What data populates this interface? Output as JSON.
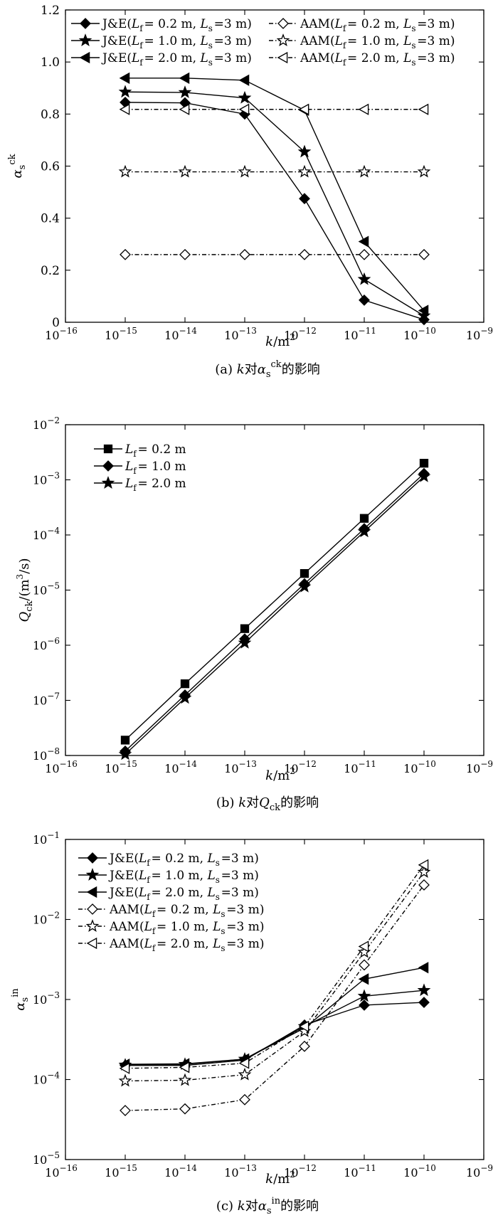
{
  "chart_data": [
    {
      "type": "line",
      "id": "a",
      "x_scale": "log",
      "y_scale": "linear",
      "xlim": [
        1e-16,
        1e-09
      ],
      "ylim": [
        0,
        1.2
      ],
      "x": [
        1e-15,
        1e-14,
        1e-13,
        1e-12,
        1e-11,
        1e-10
      ],
      "x_ticks": [
        -16,
        -15,
        -14,
        -13,
        -12,
        -11,
        -10,
        -9
      ],
      "y_ticks": [
        "0",
        "0.2",
        "0.4",
        "0.6",
        "0.8",
        "1.0",
        "1.2"
      ],
      "xlabel": "k/m²",
      "ylabel": "αsck",
      "caption": "(a)  k对αsck的影响",
      "legend_position": "top",
      "series": [
        {
          "legend_parts": [
            "J&E(",
            "Lf",
            "= 0.2 m, ",
            "Ls",
            "=3 m)"
          ],
          "marker": "diamond-filled",
          "line": "solid",
          "values": [
            0.845,
            0.843,
            0.8,
            0.475,
            0.085,
            0.01
          ]
        },
        {
          "legend_parts": [
            "J&E(",
            "Lf",
            "= 1.0 m, ",
            "Ls",
            "=3 m)"
          ],
          "marker": "star-filled",
          "line": "solid",
          "values": [
            0.885,
            0.883,
            0.862,
            0.655,
            0.165,
            0.025
          ]
        },
        {
          "legend_parts": [
            "J&E(",
            "Lf",
            "= 2.0 m, ",
            "Ls",
            "=3 m)"
          ],
          "marker": "triangle-left-filled",
          "line": "solid",
          "values": [
            0.938,
            0.938,
            0.93,
            0.815,
            0.31,
            0.045
          ]
        },
        {
          "legend_parts": [
            "AAM(",
            "Lf",
            "= 0.2 m, ",
            "Ls",
            "=3 m)"
          ],
          "marker": "diamond-open",
          "line": "dashdot",
          "values": [
            0.26,
            0.26,
            0.26,
            0.26,
            0.26,
            0.26
          ]
        },
        {
          "legend_parts": [
            "AAM(",
            "Lf",
            "= 1.0 m, ",
            "Ls",
            "=3 m)"
          ],
          "marker": "star-open",
          "line": "dashdot",
          "values": [
            0.578,
            0.578,
            0.578,
            0.578,
            0.578,
            0.578
          ]
        },
        {
          "legend_parts": [
            "AAM(",
            "Lf",
            "= 2.0 m, ",
            "Ls",
            "=3 m)"
          ],
          "marker": "triangle-left-open",
          "line": "dashdot",
          "values": [
            0.818,
            0.818,
            0.818,
            0.818,
            0.818,
            0.818
          ]
        }
      ]
    },
    {
      "type": "line",
      "id": "b",
      "x_scale": "log",
      "y_scale": "log",
      "xlim": [
        1e-16,
        1e-09
      ],
      "ylim": [
        1e-08,
        0.01
      ],
      "x": [
        1e-15,
        1e-14,
        1e-13,
        1e-12,
        1e-11,
        1e-10
      ],
      "x_ticks": [
        -16,
        -15,
        -14,
        -13,
        -12,
        -11,
        -10,
        -9
      ],
      "y_ticks": [
        -8,
        -7,
        -6,
        -5,
        -4,
        -3,
        -2
      ],
      "xlabel": "k/m²",
      "ylabel": "Qck/(m³/s)",
      "caption": "(b)  k对Qck的影响",
      "legend_position": "top-left",
      "series": [
        {
          "legend_parts": [
            "",
            "Lf",
            "= 0.2 m"
          ],
          "marker": "square-filled",
          "line": "solid",
          "values": [
            1.9e-08,
            2e-07,
            2e-06,
            2e-05,
            0.0002,
            0.002
          ]
        },
        {
          "legend_parts": [
            "",
            "Lf",
            "= 1.0 m"
          ],
          "marker": "diamond-filled",
          "line": "solid",
          "values": [
            1.2e-08,
            1.25e-07,
            1.3e-06,
            1.3e-05,
            0.00013,
            0.0013
          ]
        },
        {
          "legend_parts": [
            "",
            "Lf",
            "= 2.0 m"
          ],
          "marker": "star-filled",
          "line": "solid",
          "values": [
            1.05e-08,
            1.1e-07,
            1.1e-06,
            1.15e-05,
            0.000115,
            0.00115
          ]
        }
      ]
    },
    {
      "type": "line",
      "id": "c",
      "x_scale": "log",
      "y_scale": "log",
      "xlim": [
        1e-16,
        1e-09
      ],
      "ylim": [
        1e-05,
        0.1
      ],
      "x": [
        1e-15,
        1e-14,
        1e-13,
        1e-12,
        1e-11,
        1e-10
      ],
      "x_ticks": [
        -16,
        -15,
        -14,
        -13,
        -12,
        -11,
        -10,
        -9
      ],
      "y_ticks": [
        -5,
        -4,
        -3,
        -2,
        -1
      ],
      "xlabel": "k/m²",
      "ylabel": "αsin",
      "caption": "(c)  k对αsin的影响",
      "legend_position": "top-left",
      "series": [
        {
          "legend_parts": [
            "J&E(",
            "Lf",
            "= 0.2 m, ",
            "Ls",
            "=3 m)"
          ],
          "marker": "diamond-filled",
          "line": "solid",
          "values": [
            0.00015,
            0.00015,
            0.000175,
            0.00048,
            0.00085,
            0.00092
          ]
        },
        {
          "legend_parts": [
            "J&E(",
            "Lf",
            "= 1.0 m, ",
            "Ls",
            "=3 m)"
          ],
          "marker": "star-filled",
          "line": "solid",
          "values": [
            0.000152,
            0.000155,
            0.00018,
            0.00046,
            0.0011,
            0.0013
          ]
        },
        {
          "legend_parts": [
            "J&E(",
            "Lf",
            "= 2.0 m, ",
            "Ls",
            "=3 m)"
          ],
          "marker": "triangle-left-filled",
          "line": "solid",
          "values": [
            0.000155,
            0.000157,
            0.00018,
            0.00044,
            0.0018,
            0.0025
          ]
        },
        {
          "legend_parts": [
            "AAM(",
            "Lf",
            "= 0.2 m, ",
            "Ls",
            "=3 m)"
          ],
          "marker": "diamond-open",
          "line": "dashdot",
          "values": [
            4.1e-05,
            4.3e-05,
            5.6e-05,
            0.00026,
            0.0027,
            0.027
          ]
        },
        {
          "legend_parts": [
            "AAM(",
            "Lf",
            "= 1.0 m, ",
            "Ls",
            "=3 m)"
          ],
          "marker": "star-open",
          "line": "dashdot",
          "values": [
            9.6e-05,
            9.8e-05,
            0.000115,
            0.0004,
            0.0039,
            0.039
          ]
        },
        {
          "legend_parts": [
            "AAM(",
            "Lf",
            "= 2.0 m, ",
            "Ls",
            "=3 m)"
          ],
          "marker": "triangle-left-open",
          "line": "dashdot",
          "values": [
            0.000138,
            0.000142,
            0.00016,
            0.00046,
            0.0046,
            0.048
          ]
        }
      ]
    }
  ]
}
